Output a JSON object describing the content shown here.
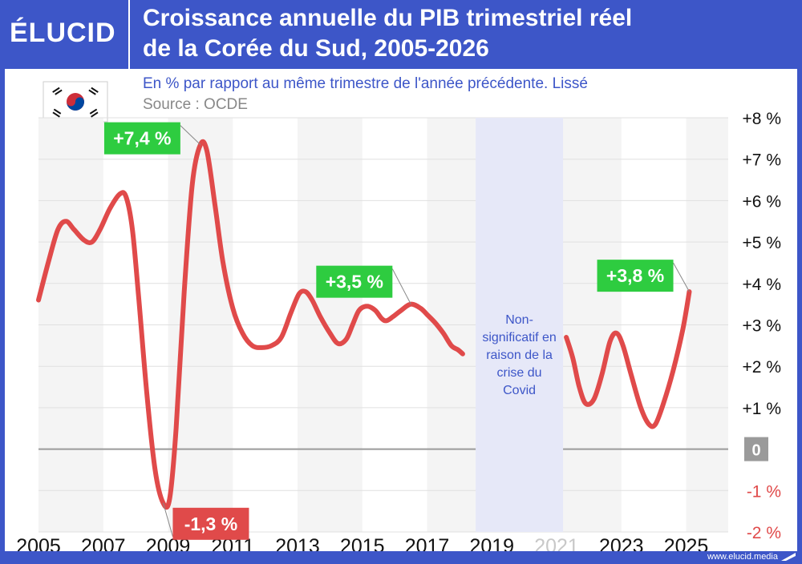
{
  "brand": {
    "logo": "ÉLUCID",
    "website": "www.elucid.media"
  },
  "header": {
    "title_line1": "Croissance annuelle du PIB trimestriel réel",
    "title_line2": "de la Corée du Sud, 2005-2026"
  },
  "colors": {
    "frame": "#3d56c8",
    "line": "#e04a4a",
    "label_green": "#2ecc40",
    "label_red": "#e04a4a",
    "covid_band": "#e6e8f8",
    "subtitle": "#3d56c8",
    "source": "#888888",
    "negative_tick": "#e04a4a",
    "zero_badge": "#9a9a9a"
  },
  "flag_icon": "south-korea-flag-icon",
  "chart_data": {
    "type": "line",
    "subtitle": "En % par rapport au même trimestre de l'année précédente. Lissé",
    "source": "Source : OCDE",
    "x_tick_labels": [
      "2005",
      "2007",
      "2009",
      "2011",
      "2013",
      "2015",
      "2017",
      "2019",
      "2021",
      "2023",
      "2025"
    ],
    "x_tick_values": [
      2005,
      2007,
      2009,
      2011,
      2013,
      2015,
      2017,
      2019,
      2021,
      2023,
      2025
    ],
    "greyed_x_ticks": [
      "2021"
    ],
    "xlim": [
      2005,
      2026.3
    ],
    "y_tick_labels": [
      "+8 %",
      "+7 %",
      "+6 %",
      "+5 %",
      "+4 %",
      "+3 %",
      "+2 %",
      "+1 %",
      "0",
      "-1 %",
      "-2 %"
    ],
    "y_tick_values": [
      8,
      7,
      6,
      5,
      4,
      3,
      2,
      1,
      0,
      -1,
      -2
    ],
    "ylim": [
      -2,
      8
    ],
    "grid": true,
    "series": [
      {
        "segments": [
          [
            [
              2005.0,
              3.6
            ],
            [
              2005.3,
              4.5
            ],
            [
              2005.6,
              5.3
            ],
            [
              2005.85,
              5.5
            ],
            [
              2006.1,
              5.3
            ],
            [
              2006.4,
              5.05
            ],
            [
              2006.65,
              5.0
            ],
            [
              2006.9,
              5.3
            ],
            [
              2007.2,
              5.8
            ],
            [
              2007.5,
              6.15
            ],
            [
              2007.7,
              6.1
            ],
            [
              2007.9,
              5.3
            ],
            [
              2008.1,
              3.6
            ],
            [
              2008.35,
              1.3
            ],
            [
              2008.6,
              -0.5
            ],
            [
              2008.85,
              -1.3
            ],
            [
              2009.05,
              -1.2
            ],
            [
              2009.25,
              0.5
            ],
            [
              2009.5,
              3.8
            ],
            [
              2009.75,
              6.4
            ],
            [
              2010.0,
              7.35
            ],
            [
              2010.2,
              7.2
            ],
            [
              2010.45,
              5.9
            ],
            [
              2010.7,
              4.5
            ],
            [
              2011.0,
              3.4
            ],
            [
              2011.3,
              2.8
            ],
            [
              2011.6,
              2.5
            ],
            [
              2011.9,
              2.45
            ],
            [
              2012.2,
              2.5
            ],
            [
              2012.5,
              2.7
            ],
            [
              2012.8,
              3.3
            ],
            [
              2013.05,
              3.75
            ],
            [
              2013.25,
              3.8
            ],
            [
              2013.45,
              3.6
            ],
            [
              2013.7,
              3.2
            ],
            [
              2014.0,
              2.8
            ],
            [
              2014.25,
              2.55
            ],
            [
              2014.5,
              2.65
            ],
            [
              2014.7,
              3.0
            ],
            [
              2014.9,
              3.35
            ],
            [
              2015.15,
              3.45
            ],
            [
              2015.4,
              3.35
            ],
            [
              2015.6,
              3.15
            ],
            [
              2015.75,
              3.1
            ],
            [
              2015.95,
              3.2
            ],
            [
              2016.2,
              3.35
            ],
            [
              2016.5,
              3.5
            ],
            [
              2016.8,
              3.4
            ],
            [
              2017.0,
              3.25
            ],
            [
              2017.25,
              3.05
            ],
            [
              2017.5,
              2.8
            ],
            [
              2017.75,
              2.5
            ],
            [
              2017.95,
              2.4
            ],
            [
              2018.1,
              2.3
            ]
          ],
          [
            [
              2021.3,
              2.7
            ],
            [
              2021.5,
              2.2
            ],
            [
              2021.7,
              1.5
            ],
            [
              2021.9,
              1.1
            ],
            [
              2022.15,
              1.2
            ],
            [
              2022.4,
              1.8
            ],
            [
              2022.65,
              2.6
            ],
            [
              2022.85,
              2.8
            ],
            [
              2023.05,
              2.5
            ],
            [
              2023.3,
              1.8
            ],
            [
              2023.6,
              1.0
            ],
            [
              2023.85,
              0.6
            ],
            [
              2024.05,
              0.6
            ],
            [
              2024.3,
              1.1
            ],
            [
              2024.6,
              1.9
            ],
            [
              2024.9,
              2.9
            ],
            [
              2025.1,
              3.8
            ]
          ]
        ]
      }
    ],
    "annotations": [
      {
        "text": "+7,4 %",
        "x": 2010.0,
        "y": 7.35,
        "style": "green"
      },
      {
        "text": "-1,3 %",
        "x": 2008.85,
        "y": -1.3,
        "style": "red"
      },
      {
        "text": "+3,5 %",
        "x": 2016.5,
        "y": 3.5,
        "style": "green"
      },
      {
        "text": "+3,8 %",
        "x": 2025.1,
        "y": 3.8,
        "style": "green"
      }
    ],
    "covid_band": {
      "x_start": 2018.5,
      "x_end": 2021.2,
      "label_lines": [
        "Non-",
        "significatif en",
        "raison de la",
        "crise du",
        "Covid"
      ]
    }
  }
}
